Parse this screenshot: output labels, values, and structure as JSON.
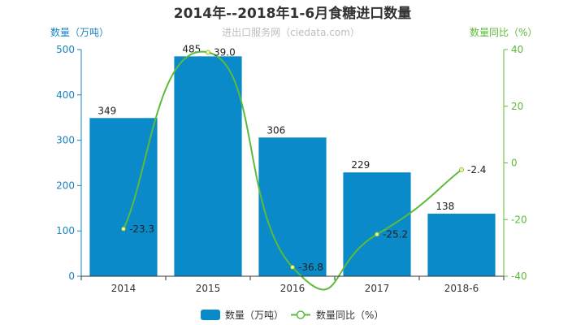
{
  "chart_data": {
    "type": "bar",
    "title": "2014年--2018年1-6月食糖进口数量",
    "watermark": "进出口服务网（ciedata.com）",
    "categories": [
      "2014",
      "2015",
      "2016",
      "2017",
      "2018-6"
    ],
    "series": [
      {
        "name": "数量（万吨）",
        "type": "bar",
        "axis": "left",
        "color": "#0A8AC8",
        "values": [
          349,
          485,
          306,
          229,
          138
        ]
      },
      {
        "name": "数量同比（%）",
        "type": "line",
        "axis": "right",
        "color": "#5DBB3A",
        "values": [
          -23.3,
          39.0,
          -36.8,
          -25.2,
          -2.4
        ]
      }
    ],
    "y_left": {
      "label": "数量（万吨）",
      "min": 0,
      "max": 500,
      "ticks": [
        0,
        100,
        200,
        300,
        400,
        500
      ],
      "color": "#1A86C0"
    },
    "y_right": {
      "label": "数量同比（%）",
      "min": -40,
      "max": 40,
      "ticks": [
        -40,
        -20,
        0,
        20,
        40
      ],
      "color": "#5DBB3A"
    },
    "bar_labels": [
      "349",
      "485",
      "306",
      "229",
      "138"
    ],
    "line_labels": [
      "-23.3",
      "39.0",
      "-36.8",
      "-25.2",
      "-2.4"
    ],
    "legend": {
      "placement": "bottom-center"
    }
  }
}
